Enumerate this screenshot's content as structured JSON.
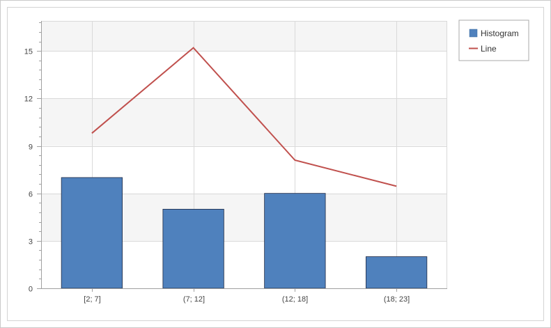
{
  "chart_data": {
    "type": "bar",
    "categories": [
      "[2; 7]",
      "(7; 12]",
      "(12; 18]",
      "(18; 23]"
    ],
    "series": [
      {
        "name": "Histogram",
        "type": "bar",
        "values": [
          7,
          5,
          6,
          2
        ],
        "color": "#4f81bd"
      },
      {
        "name": "Line",
        "type": "line",
        "values": [
          9.8,
          15.2,
          8.1,
          6.45
        ],
        "color": "#c0504d"
      }
    ],
    "ylim": [
      0,
      16.9
    ],
    "yticks": [
      0,
      3,
      6,
      9,
      12,
      15
    ],
    "ytick_labels": [
      "0",
      "3",
      "6",
      "9",
      "12",
      "15"
    ],
    "y_minor_step": 0.6,
    "grid": true,
    "alternating_bands": true,
    "legend_position": "top-right",
    "colors": {
      "band": "#f5f5f5",
      "grid": "#d9d9d9",
      "axis": "#a0a0a0",
      "bar_border": "#1f2a44"
    }
  }
}
